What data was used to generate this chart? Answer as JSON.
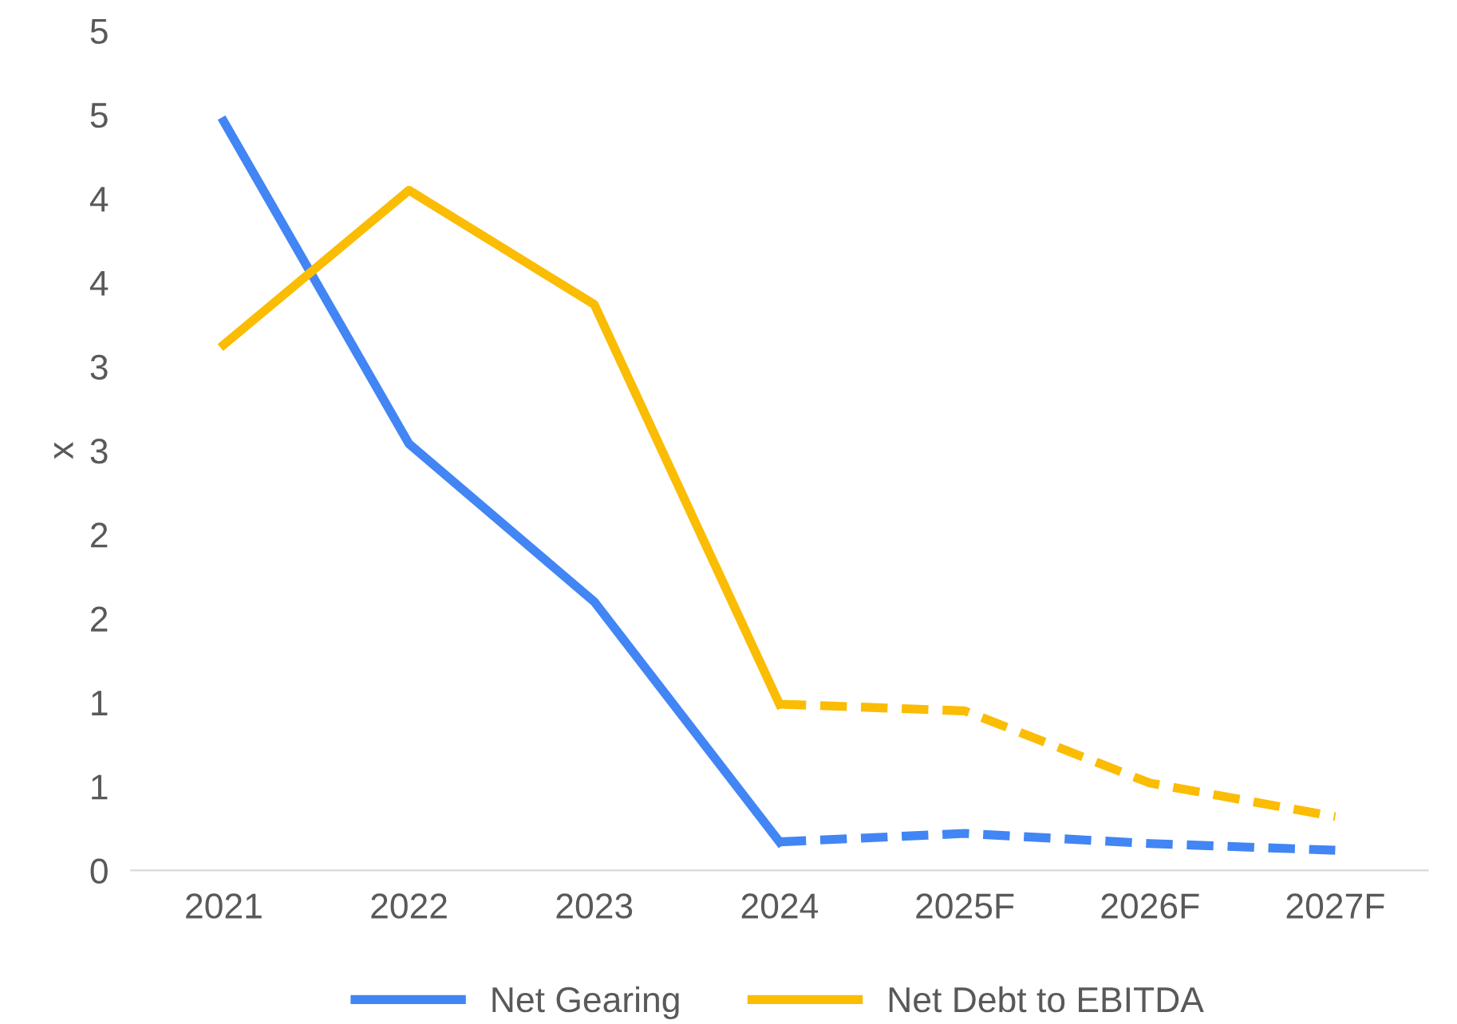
{
  "chart_data": {
    "type": "line",
    "ylabel": "x",
    "categories": [
      "2021",
      "2022",
      "2023",
      "2024",
      "2025F",
      "2026F",
      "2027F"
    ],
    "series": [
      {
        "name": "Net Gearing",
        "color": "#4285f4",
        "line_style": "solid",
        "values": [
          4.46,
          2.54,
          1.6,
          0.17,
          null,
          null,
          null
        ]
      },
      {
        "name": "Net Debt to EBITDA",
        "color": "#fbbc04",
        "line_style": "solid",
        "values": [
          3.13,
          4.05,
          3.37,
          0.99,
          null,
          null,
          null
        ]
      },
      {
        "color": "#4285f4",
        "line_style": "dashed",
        "values": [
          null,
          null,
          null,
          0.17,
          0.22,
          0.16,
          0.12
        ]
      },
      {
        "color": "#fbbc04",
        "line_style": "dashed",
        "values": [
          null,
          null,
          null,
          0.99,
          0.95,
          0.52,
          0.32
        ]
      }
    ],
    "ylim": [
      0,
      5
    ],
    "yticks": [
      0,
      {
        "value": 0.5,
        "label": "1"
      },
      1,
      {
        "value": 1.5,
        "label": "2"
      },
      2,
      {
        "value": 2.5,
        "label": "3"
      },
      3,
      {
        "value": 3.5,
        "label": "4"
      },
      4,
      {
        "value": 4.5,
        "label": "5"
      },
      5
    ],
    "grid": false,
    "legend": "bottom",
    "marker": "none"
  }
}
